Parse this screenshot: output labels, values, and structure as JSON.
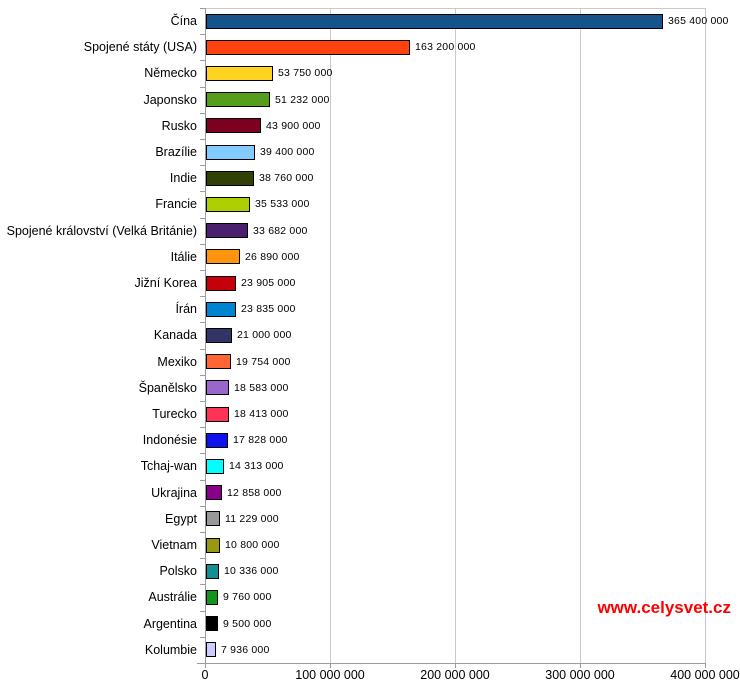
{
  "chart_data": {
    "type": "bar",
    "orientation": "horizontal",
    "title": "",
    "xlabel": "",
    "ylabel": "",
    "legend": "none",
    "grid": "vertical-gridlines",
    "xlim": [
      0,
      400000000
    ],
    "x_tick_labels": [
      "0",
      "100 000 000",
      "200 000 000",
      "300 000 000",
      "400 000 000"
    ],
    "categories": [
      "Čína",
      "Spojené státy (USA)",
      "Německo",
      "Japonsko",
      "Rusko",
      "Brazílie",
      "Indie",
      "Francie",
      "Spojené království (Velká Británie)",
      "Itálie",
      "Jižní Korea",
      "Írán",
      "Kanada",
      "Mexiko",
      "Španělsko",
      "Turecko",
      "Indonésie",
      "Tchaj-wan",
      "Ukrajina",
      "Egypt",
      "Vietnam",
      "Polsko",
      "Austrálie",
      "Argentina",
      "Kolumbie"
    ],
    "values": [
      365400000,
      163200000,
      53750000,
      51232000,
      43900000,
      39400000,
      38760000,
      35533000,
      33682000,
      26890000,
      23905000,
      23835000,
      21000000,
      19754000,
      18583000,
      18413000,
      17828000,
      14313000,
      12858000,
      11229000,
      10800000,
      10336000,
      9760000,
      9500000,
      7936000
    ],
    "value_labels": [
      "365 400 000",
      "163 200 000",
      "53 750 000",
      "51 232 000",
      "43 900 000",
      "39 400 000",
      "38 760 000",
      "35 533 000",
      "33 682 000",
      "26 890 000",
      "23 905 000",
      "23 835 000",
      "21 000 000",
      "19 754 000",
      "18 583 000",
      "18 413 000",
      "17 828 000",
      "14 313 000",
      "12 858 000",
      "11 229 000",
      "10 800 000",
      "10 336 000",
      "9 760 000",
      "9 500 000",
      "7 936 000"
    ],
    "bar_colors": [
      "#14538C",
      "#FF420E",
      "#FFD320",
      "#579D1C",
      "#7E0021",
      "#83CAFF",
      "#314004",
      "#AECF00",
      "#4B1F6F",
      "#FF950E",
      "#C5000B",
      "#0084D1",
      "#333366",
      "#FF6633",
      "#9966CC",
      "#FF3355",
      "#1111EE",
      "#00FFFF",
      "#880088",
      "#999999",
      "#999911",
      "#138F94",
      "#12951B",
      "#000000",
      "#CCCCFF"
    ]
  },
  "watermark": {
    "text": "www.celysvet.cz",
    "color": "#FF0000"
  },
  "colors": {
    "background": "#FFFFFF",
    "axis": "#9C9C9C",
    "gridline": "#C9C9C9",
    "bar_border": "#000000",
    "text": "#000000"
  }
}
